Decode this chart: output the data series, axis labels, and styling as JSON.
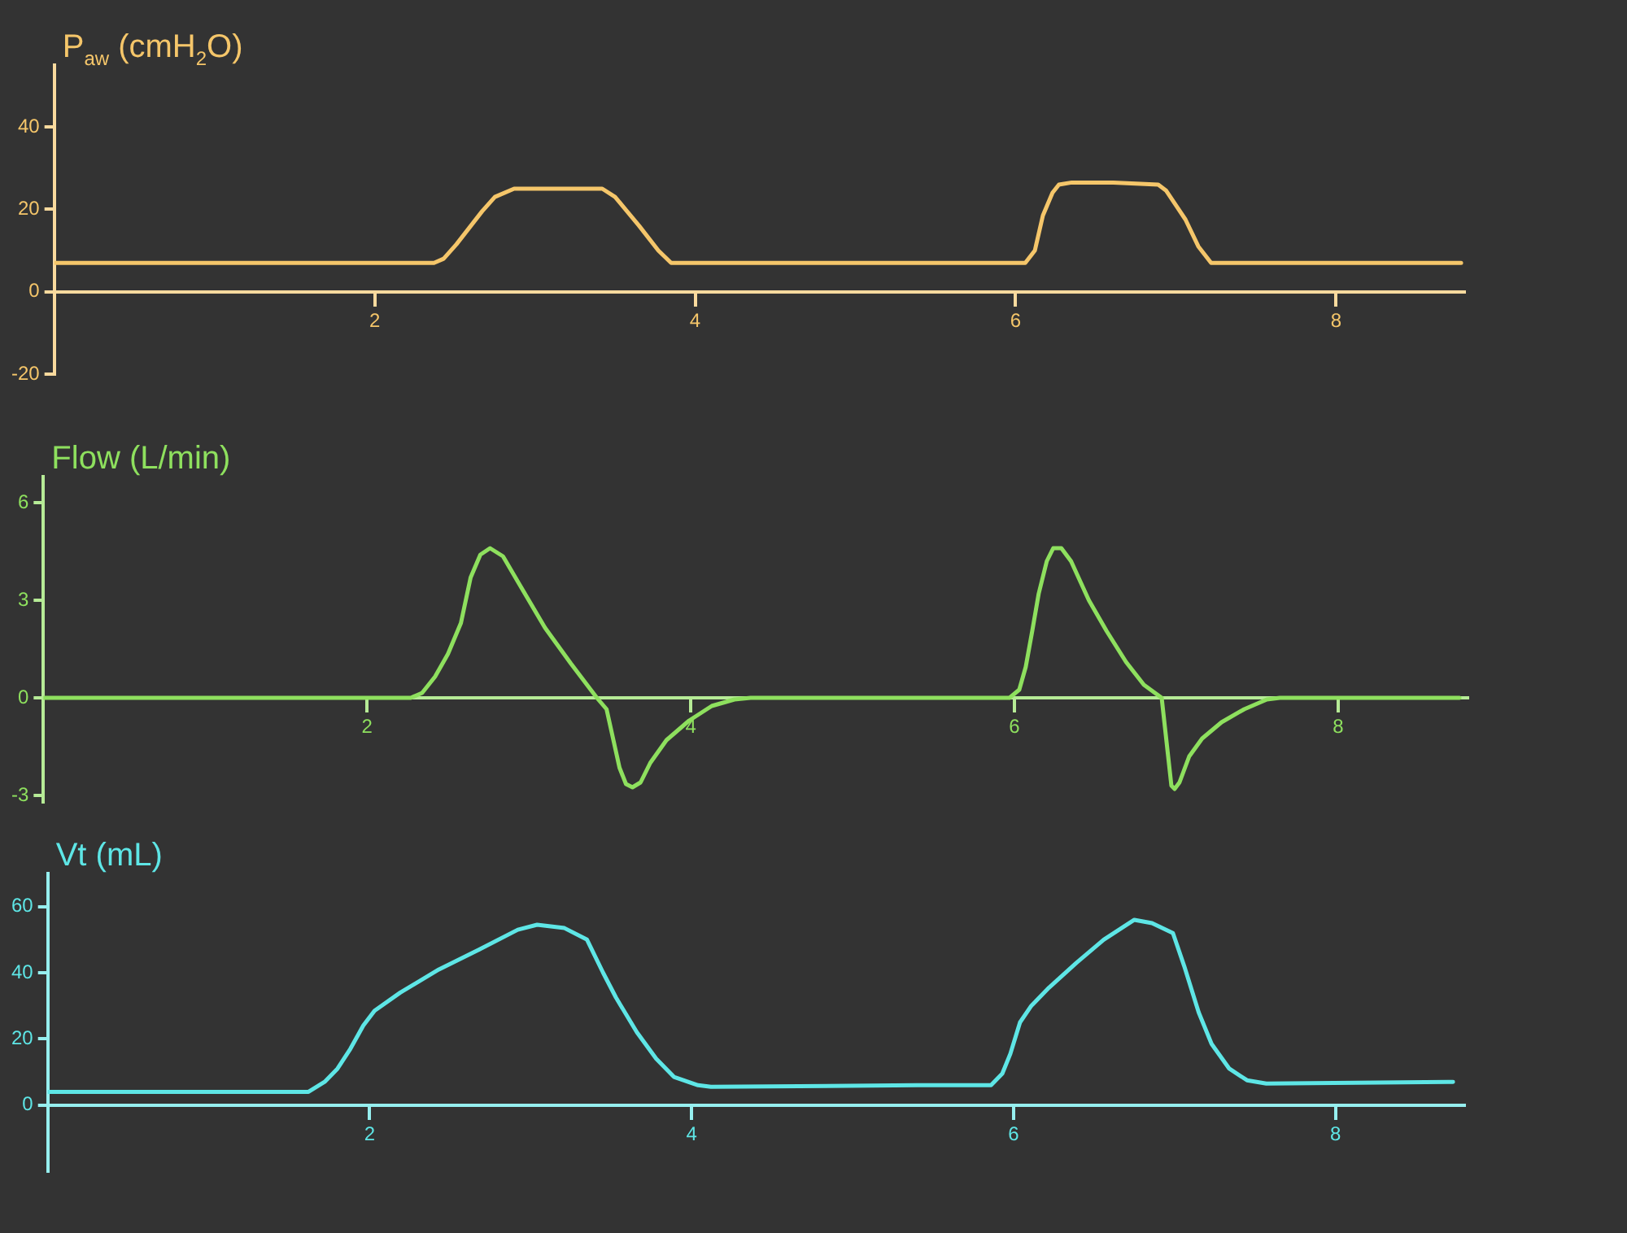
{
  "chart_data": [
    {
      "type": "line",
      "ylabel": "P$_{aw}$ (cmH$_{2}$O)",
      "x": [
        0,
        2.37,
        2.43,
        2.51,
        2.59,
        2.67,
        2.75,
        2.87,
        3.42,
        3.5,
        3.65,
        3.77,
        3.85,
        6.06,
        6.12,
        6.17,
        6.23,
        6.27,
        6.35,
        6.61,
        6.89,
        6.94,
        7.06,
        7.14,
        7.22,
        8.78
      ],
      "series": [
        {
          "color": "#f5c66a",
          "values": [
            7,
            7,
            8,
            11.5,
            15.5,
            19.5,
            23,
            25,
            25,
            23,
            16,
            10,
            7,
            7,
            10,
            18.5,
            24,
            26,
            26.5,
            26.5,
            26,
            24.5,
            17.5,
            11,
            7,
            7
          ]
        }
      ],
      "xlim": [
        0,
        8.8
      ],
      "xticks": [
        2,
        4,
        6,
        8
      ],
      "ylim": [
        -20,
        55
      ],
      "yticks": [
        -20,
        0,
        20,
        40
      ]
    },
    {
      "type": "line",
      "ylabel": "Flow (L/min)",
      "x": [
        0,
        2.27,
        2.34,
        2.42,
        2.5,
        2.58,
        2.64,
        2.7,
        2.76,
        2.84,
        2.94,
        3.1,
        3.26,
        3.42,
        3.48,
        3.52,
        3.56,
        3.6,
        3.64,
        3.69,
        3.75,
        3.85,
        3.99,
        4.13,
        4.27,
        4.37,
        5.97,
        6.03,
        6.07,
        6.11,
        6.15,
        6.2,
        6.24,
        6.29,
        6.35,
        6.46,
        6.57,
        6.69,
        6.8,
        6.91,
        6.93,
        6.95,
        6.97,
        6.99,
        7.02,
        7.08,
        7.16,
        7.28,
        7.42,
        7.56,
        7.64,
        8.75
      ],
      "series": [
        {
          "color": "#8ee05e",
          "values": [
            0,
            0,
            0.15,
            0.65,
            1.35,
            2.3,
            3.7,
            4.4,
            4.6,
            4.35,
            3.5,
            2.15,
            1.05,
            0,
            -0.35,
            -1.25,
            -2.15,
            -2.65,
            -2.75,
            -2.6,
            -2.0,
            -1.3,
            -0.7,
            -0.25,
            -0.05,
            0,
            0,
            0.25,
            0.95,
            2.05,
            3.2,
            4.2,
            4.6,
            4.6,
            4.2,
            3.0,
            2.05,
            1.1,
            0.4,
            0,
            -0.9,
            -1.8,
            -2.7,
            -2.8,
            -2.6,
            -1.8,
            -1.25,
            -0.75,
            -0.35,
            -0.05,
            0,
            0
          ]
        }
      ],
      "xlim": [
        0,
        8.8
      ],
      "xticks": [
        2,
        4,
        6,
        8
      ],
      "ylim": [
        -3.2,
        6.8
      ],
      "yticks": [
        -3,
        0,
        3,
        6
      ]
    },
    {
      "type": "line",
      "ylabel": "Vt (mL)",
      "x": [
        0,
        1.62,
        1.72,
        1.8,
        1.88,
        1.96,
        2.03,
        2.19,
        2.43,
        2.68,
        2.92,
        3.04,
        3.21,
        3.35,
        3.45,
        3.53,
        3.66,
        3.78,
        3.89,
        4.04,
        4.12,
        5.4,
        5.86,
        5.93,
        5.98,
        6.04,
        6.11,
        6.22,
        6.39,
        6.56,
        6.75,
        6.86,
        6.99,
        7.06,
        7.15,
        7.23,
        7.34,
        7.45,
        7.57,
        8.73
      ],
      "series": [
        {
          "color": "#5ee6e6",
          "values": [
            4,
            4,
            7,
            11,
            17,
            24,
            28.5,
            34,
            41,
            47,
            53,
            54.5,
            53.5,
            50,
            40,
            32.5,
            22,
            14,
            8.5,
            6,
            5.5,
            6,
            6,
            9.5,
            15.5,
            25,
            30,
            35.5,
            43,
            50,
            56,
            55,
            52,
            42,
            28,
            18.5,
            11,
            7.5,
            6.5,
            7
          ]
        }
      ],
      "xlim": [
        0,
        8.8
      ],
      "xticks": [
        2,
        4,
        6,
        8
      ],
      "ylim": [
        -20,
        70
      ],
      "yticks": [
        0,
        20,
        40,
        60
      ]
    }
  ]
}
